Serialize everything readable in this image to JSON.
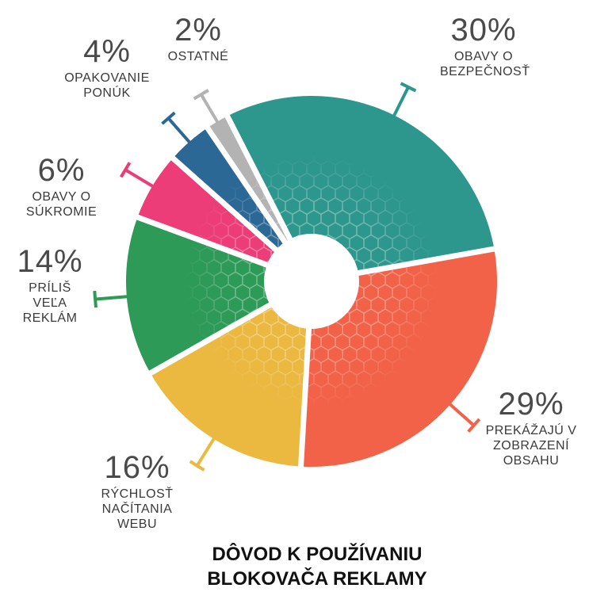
{
  "chart_data": {
    "type": "pie",
    "title_line1": "DÔVOD K POUŽÍVANIU",
    "title_line2": "BLOKOVAČA REKLAMY",
    "slices": [
      {
        "label": "OBAVY O BEZPEČNOSŤ",
        "pct_label": "30%",
        "value": 30,
        "color": "#2d978d"
      },
      {
        "label": "PREKÁŽAJÚ V ZOBRAZENÍ OBSAHU",
        "pct_label": "29%",
        "value": 29,
        "color": "#f26248"
      },
      {
        "label": "RÝCHLOSŤ NAČÍTANIA WEBU",
        "pct_label": "16%",
        "value": 16,
        "color": "#ebb840"
      },
      {
        "label": "PRÍLIŠ VEĽA REKLÁM",
        "pct_label": "14%",
        "value": 14,
        "color": "#2e9a58"
      },
      {
        "label": "OBAVY O SÚKROMIE",
        "pct_label": "6%",
        "value": 6,
        "color": "#ec3d78"
      },
      {
        "label": "OPAKOVANIE PONÚK",
        "pct_label": "4%",
        "value": 4,
        "color": "#2c6896"
      },
      {
        "label": "OSTATNÉ",
        "pct_label": "2%",
        "value": 2,
        "color": "#b3b3b3"
      }
    ]
  }
}
